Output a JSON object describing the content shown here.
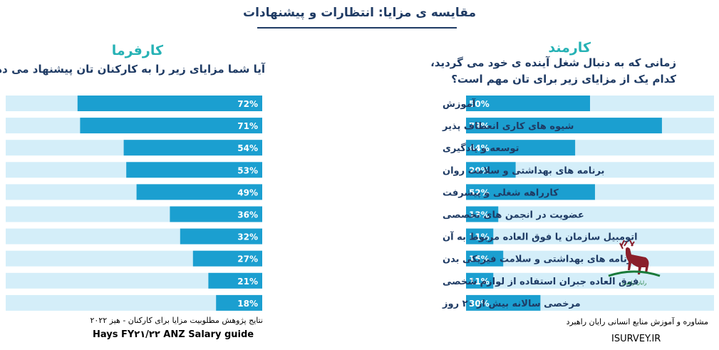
{
  "title": "مقایسه ی مزایا: انتظارات و پیشنهادات",
  "employer": {
    "heading": "کارفرما",
    "question": "آیا شما مزایای زیر را به کارکنان تان پیشنهاد می دهید؟"
  },
  "employee": {
    "heading": "کارمند",
    "question_line1": "زمانی که به دنبال شغل آینده ی خود می گردید،",
    "question_line2": "کدام یک از مزایای زیر برای تان مهم است؟"
  },
  "colors": {
    "bar": "#1b9fd0",
    "track": "#d4eef9",
    "title": "#1f3b64",
    "heading": "#26b2b5"
  },
  "chart_data": {
    "type": "bar",
    "orientation": "horizontal",
    "value_unit": "%",
    "xlim": [
      0,
      100
    ],
    "categories": [
      "آموزش",
      "شیوه های کاری انعطاف پذیر",
      "توسعه و یادگیری",
      "برنامه های بهداشتی و سلامت روان",
      "کارراهه شغلی و پیشرفت",
      "عضویت در انجمن های تخصصی",
      "اتومبیل سازمان یا فوق العاده مربوط به آن",
      "برنامه های بهداشتی و سلامت فیزیکی بدن",
      "فوق العاده جبران استفاده از لوازم شخصی",
      "مرخصی سالانه بیش از ۲۰ روز"
    ],
    "series": [
      {
        "name": "کارفرما",
        "values": [
          72,
          71,
          54,
          53,
          49,
          36,
          32,
          27,
          21,
          18
        ],
        "labels": [
          "72%",
          "71%",
          "54%",
          "53%",
          "49%",
          "36%",
          "32%",
          "27%",
          "21%",
          "18%"
        ]
      },
      {
        "name": "کارمند",
        "values": [
          50,
          79,
          44,
          20,
          52,
          13,
          11,
          15,
          11,
          30
        ],
        "labels": [
          "50%",
          "79%",
          "44%",
          "20%",
          "52%",
          "13%",
          "11%",
          "15%",
          "11%",
          "30%"
        ]
      }
    ]
  },
  "footer": {
    "source_line1": "نتایج پژوهش مطلوبیت مزایا برای کارکنان - هیز ۲۰۲۲",
    "source_line2": "Hays FY۲۱/۲۲ ANZ Salary guide",
    "company": "مشاوره و آموزش منابع انسانی رایان راهبرد",
    "website": "ISURVEY.IR",
    "logo_text": "رایان راهبرد"
  }
}
